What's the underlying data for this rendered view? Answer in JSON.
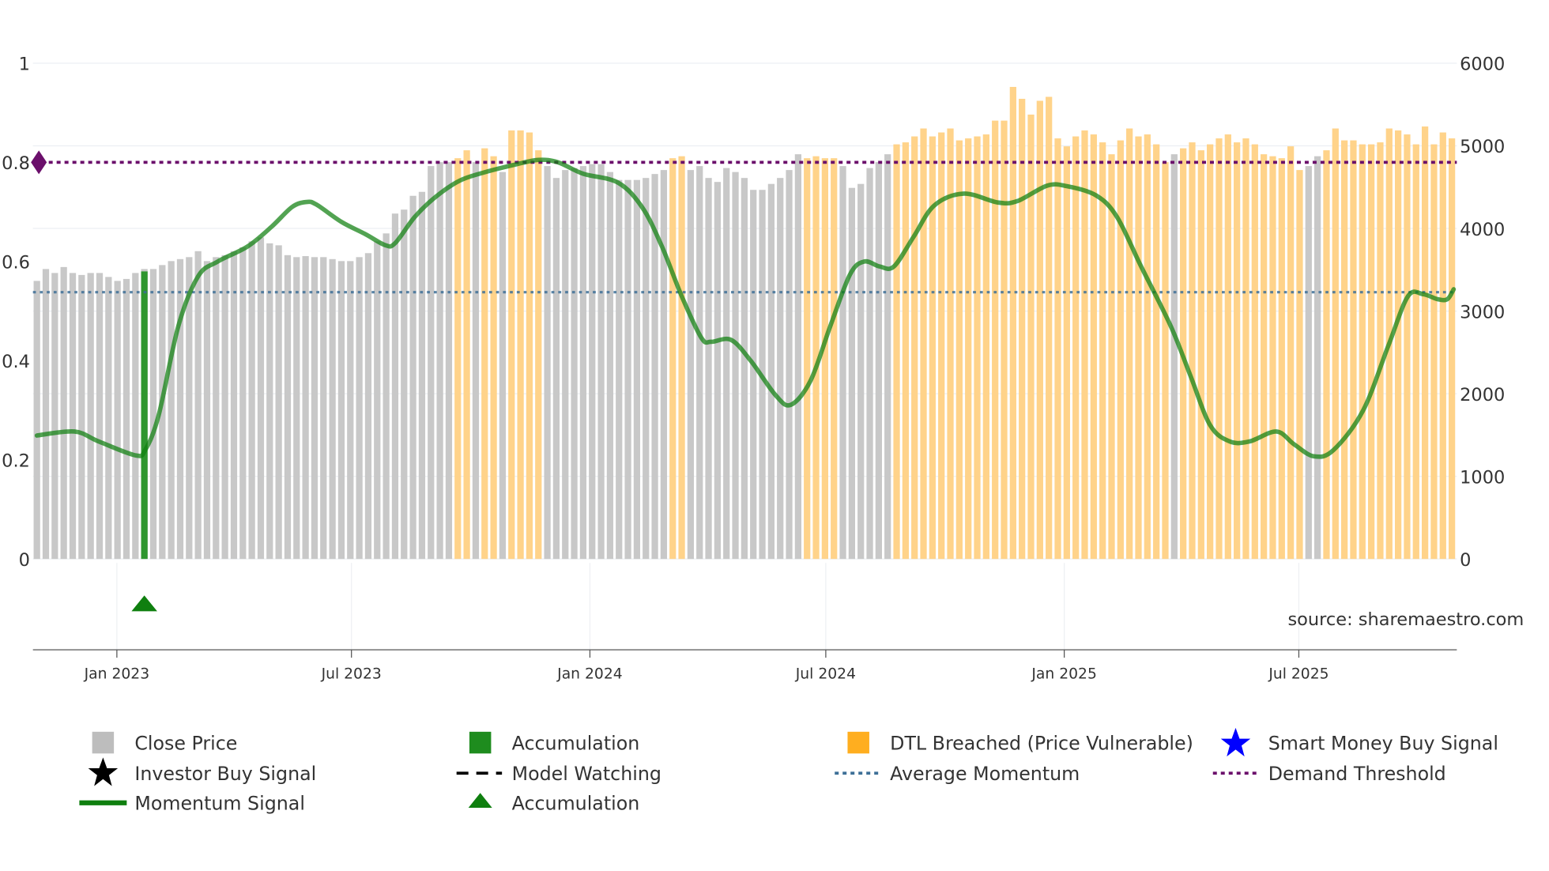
{
  "colors": {
    "close_price": "#c8c8c8",
    "dtl_breached": "#ffd38a",
    "accumulation": "#2e962e",
    "momentum": "#0f7f0f",
    "average_momentum": "#3d6f97",
    "demand_threshold": "#6b0f6b",
    "smart_money": "#0000ff",
    "investor": "#000000"
  },
  "source_label": "source: sharemaestro.com",
  "legend": [
    {
      "label": "Close Price",
      "icon": "grey-square"
    },
    {
      "label": "Accumulation",
      "icon": "green-square"
    },
    {
      "label": "DTL Breached (Price Vulnerable)",
      "icon": "orange-square"
    },
    {
      "label": "Smart Money Buy Signal",
      "icon": "blue-star"
    },
    {
      "label": "Investor Buy Signal",
      "icon": "black-star"
    },
    {
      "label": "Model Watching",
      "icon": "black-dashed-line"
    },
    {
      "label": "Average Momentum",
      "icon": "blue-dotted-line"
    },
    {
      "label": "Demand Threshold",
      "icon": "purple-dotted-line"
    },
    {
      "label": "Momentum Signal",
      "icon": "green-line"
    },
    {
      "label": "Accumulation",
      "icon": "green-triangle"
    }
  ],
  "chart_data": {
    "type": "bar",
    "left_axis": {
      "range": [
        0,
        1
      ],
      "ticks": [
        0,
        0.2,
        0.4,
        0.6,
        0.8,
        1
      ],
      "tick_labels": [
        "0",
        "0.2",
        "0.4",
        "0.6",
        "0.8",
        "1"
      ]
    },
    "right_axis": {
      "range": [
        0,
        6000
      ],
      "ticks": [
        0,
        1000,
        2000,
        3000,
        4000,
        5000,
        6000
      ],
      "tick_labels": [
        "0",
        "1000",
        "2000",
        "3000",
        "4000",
        "5000",
        "6000"
      ]
    },
    "x_ticks": [
      {
        "date": "2023-01-01",
        "label": "Jan 2023"
      },
      {
        "date": "2023-07-01",
        "label": "Jul 2023"
      },
      {
        "date": "2024-01-01",
        "label": "Jan 2024"
      },
      {
        "date": "2024-07-01",
        "label": "Jul 2024"
      },
      {
        "date": "2025-01-01",
        "label": "Jan 2025"
      },
      {
        "date": "2025-07-01",
        "label": "Jul 2025"
      }
    ],
    "bar_frequency": "weekly",
    "close_price": [
      3365,
      3509,
      3461,
      3533,
      3461,
      3437,
      3461,
      3461,
      3413,
      3365,
      3389,
      3461,
      3509,
      3509,
      3557,
      3605,
      3629,
      3653,
      3725,
      3605,
      3653,
      3677,
      3725,
      3772,
      3844,
      3892,
      3820,
      3796,
      3677,
      3653,
      3665,
      3653,
      3653,
      3629,
      3605,
      3605,
      3653,
      3701,
      3844,
      3940,
      4180,
      4228,
      4395,
      4443,
      4755,
      4802,
      4802,
      4850,
      4946,
      4802,
      4970,
      4874,
      4683,
      5186,
      5186,
      5162,
      4946,
      4755,
      4611,
      4707,
      4731,
      4755,
      4779,
      4779,
      4683,
      4587,
      4587,
      4587,
      4611,
      4659,
      4707,
      4850,
      4874,
      4707,
      4755,
      4611,
      4563,
      4731,
      4683,
      4611,
      4467,
      4467,
      4539,
      4611,
      4707,
      4898,
      4850,
      4874,
      4850,
      4850,
      4755,
      4491,
      4539,
      4731,
      4802,
      4898,
      5018,
      5042,
      5114,
      5210,
      5114,
      5162,
      5210,
      5066,
      5090,
      5114,
      5138,
      5305,
      5305,
      5713,
      5569,
      5378,
      5545,
      5593,
      5090,
      4994,
      5114,
      5186,
      5138,
      5042,
      4898,
      5066,
      5210,
      5114,
      5138,
      5018,
      4802,
      4898,
      4970,
      5042,
      4946,
      5018,
      5090,
      5138,
      5042,
      5090,
      5018,
      4898,
      4874,
      4850,
      4994,
      4707,
      4755,
      4874,
      4946,
      5210,
      5066,
      5066,
      5018,
      5018,
      5042,
      5210,
      5186,
      5138,
      5018,
      5234,
      5018,
      5162,
      5090
    ],
    "status": "gggggggggggggggggggggggggggggggggggggggggggggggoogoogooooggggggggggggggoogggggggggggggooooggggggooooooooooooooooooooooooooooooogooooooooooooooggoooooooooooooooo",
    "status_legend": {
      "g": "Close Price",
      "o": "DTL Breached (Price Vulnerable)"
    },
    "accumulation_bar": {
      "index": 12,
      "value": 0.58
    },
    "accumulation_marker": {
      "index": 12
    },
    "momentum_signal": [
      [
        0,
        0.249
      ],
      [
        4.2,
        0.257
      ],
      [
        6.9,
        0.237
      ],
      [
        11,
        0.209
      ],
      [
        12.1,
        0.22
      ],
      [
        13.6,
        0.29
      ],
      [
        15.8,
        0.47
      ],
      [
        18,
        0.57
      ],
      [
        20.2,
        0.6
      ],
      [
        23.5,
        0.63
      ],
      [
        26.2,
        0.67
      ],
      [
        28.5,
        0.71
      ],
      [
        30.1,
        0.72
      ],
      [
        31.2,
        0.715
      ],
      [
        34,
        0.68
      ],
      [
        36.7,
        0.655
      ],
      [
        38.9,
        0.633
      ],
      [
        40,
        0.637
      ],
      [
        42.2,
        0.69
      ],
      [
        44.5,
        0.73
      ],
      [
        47.2,
        0.763
      ],
      [
        50,
        0.78
      ],
      [
        53.3,
        0.795
      ],
      [
        56,
        0.805
      ],
      [
        58.2,
        0.8
      ],
      [
        61,
        0.777
      ],
      [
        64.9,
        0.759
      ],
      [
        67.6,
        0.709
      ],
      [
        69.8,
        0.63
      ],
      [
        72,
        0.53
      ],
      [
        74.2,
        0.446
      ],
      [
        75.3,
        0.438
      ],
      [
        77.5,
        0.442
      ],
      [
        79.7,
        0.4
      ],
      [
        82.5,
        0.33
      ],
      [
        84.2,
        0.311
      ],
      [
        86.4,
        0.36
      ],
      [
        88.6,
        0.47
      ],
      [
        90.8,
        0.574
      ],
      [
        92.4,
        0.6
      ],
      [
        94.1,
        0.59
      ],
      [
        95.7,
        0.59
      ],
      [
        97.9,
        0.65
      ],
      [
        100.2,
        0.713
      ],
      [
        103.5,
        0.737
      ],
      [
        107.3,
        0.719
      ],
      [
        109.5,
        0.722
      ],
      [
        112.8,
        0.753
      ],
      [
        115,
        0.752
      ],
      [
        118.3,
        0.733
      ],
      [
        120.6,
        0.69
      ],
      [
        123.3,
        0.59
      ],
      [
        126.6,
        0.47
      ],
      [
        128.8,
        0.37
      ],
      [
        131,
        0.27
      ],
      [
        133.2,
        0.237
      ],
      [
        135.4,
        0.237
      ],
      [
        138.4,
        0.257
      ],
      [
        140.4,
        0.231
      ],
      [
        142.6,
        0.207
      ],
      [
        144.8,
        0.22
      ],
      [
        148.1,
        0.3
      ],
      [
        150.9,
        0.43
      ],
      [
        153.1,
        0.53
      ],
      [
        154.8,
        0.534
      ],
      [
        156.4,
        0.524
      ],
      [
        157.5,
        0.524
      ],
      [
        158.2,
        0.544
      ]
    ],
    "average_momentum": 0.538,
    "demand_threshold": 0.8,
    "grid": true
  }
}
